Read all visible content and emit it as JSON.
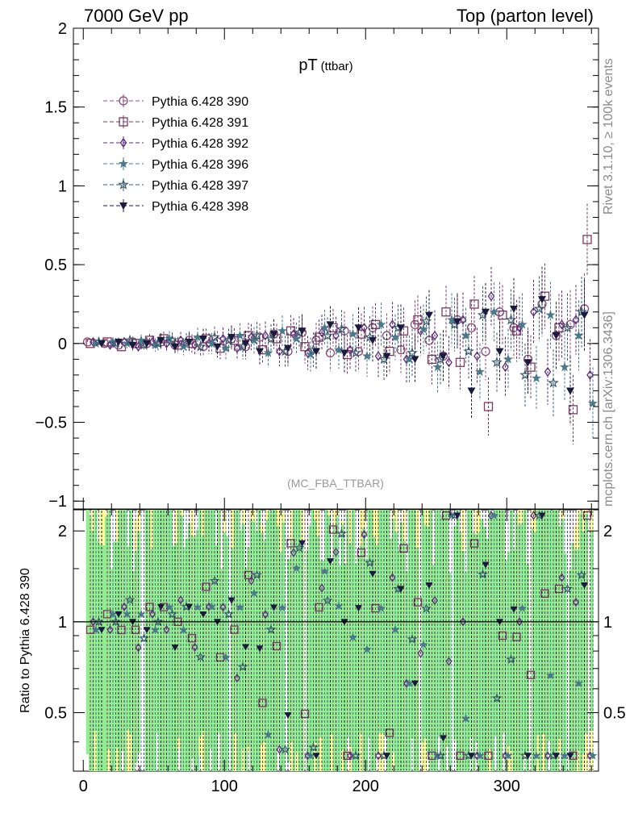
{
  "header": {
    "left": "7000 GeV pp",
    "right": "Top (parton level)"
  },
  "side_labels": {
    "rivet": "Rivet 3.1.10, ≥ 100k events",
    "mcplots": "mcplots.cern.ch [arXiv:1306.3436]"
  },
  "chart_data": [
    {
      "type": "scatter",
      "title": "pT",
      "title_suffix": "(ttbar)",
      "watermark": "(MC_FBA_TTBAR)",
      "xlim": [
        -7,
        365
      ],
      "ylim": [
        -1.05,
        2.0
      ],
      "yticks": [
        -1,
        -0.5,
        0,
        0.5,
        1,
        1.5,
        2
      ],
      "ytick_labels": [
        "−1",
        "−0.5",
        "0",
        "0.5",
        "1",
        "1.5",
        "2"
      ],
      "legend_position": "top-left",
      "series": [
        {
          "name": "Pythia 6.428 390",
          "marker": "circle-open",
          "color": "#8a4a7a",
          "x": [
            3,
            15,
            25,
            35,
            45,
            55,
            65,
            75,
            85,
            95,
            105,
            115,
            125,
            135,
            145,
            155,
            165,
            175,
            185,
            195,
            205,
            215,
            225,
            235,
            245,
            255,
            265,
            275,
            285,
            295,
            305,
            315,
            325,
            335,
            345,
            355
          ],
          "y": [
            0.01,
            0.0,
            -0.01,
            0.01,
            0.0,
            0.01,
            -0.01,
            0.02,
            -0.02,
            0.01,
            0.03,
            -0.02,
            0.04,
            0.06,
            -0.05,
            0.07,
            0.02,
            -0.06,
            0.08,
            -0.05,
            0.1,
            0.05,
            -0.04,
            0.12,
            0.02,
            -0.08,
            0.15,
            0.1,
            -0.05,
            0.2,
            0.1,
            -0.1,
            0.25,
            0.05,
            0.12,
            0.22
          ]
        },
        {
          "name": "Pythia 6.428 391",
          "marker": "square-open",
          "color": "#7a3a5e",
          "x": [
            5,
            17,
            27,
            37,
            47,
            57,
            67,
            77,
            87,
            97,
            107,
            117,
            127,
            137,
            147,
            157,
            167,
            177,
            187,
            197,
            207,
            217,
            227,
            237,
            247,
            257,
            267,
            277,
            287,
            297,
            307,
            317,
            327,
            337,
            347,
            357
          ],
          "y": [
            0.0,
            0.01,
            -0.02,
            0.0,
            0.02,
            0.03,
            -0.01,
            0.0,
            0.03,
            -0.03,
            0.02,
            0.05,
            -0.04,
            0.03,
            0.08,
            -0.02,
            0.04,
            0.1,
            -0.07,
            0.06,
            0.12,
            -0.05,
            0.08,
            0.15,
            -0.1,
            0.2,
            -0.12,
            0.25,
            -0.4,
            0.18,
            0.08,
            -0.15,
            0.3,
            0.1,
            -0.42,
            0.66
          ]
        },
        {
          "name": "Pythia 6.428 392",
          "marker": "diamond-open",
          "color": "#5a2a7a",
          "x": [
            7,
            19,
            29,
            39,
            49,
            59,
            69,
            79,
            89,
            99,
            109,
            119,
            129,
            139,
            149,
            159,
            169,
            179,
            189,
            199,
            209,
            219,
            229,
            239,
            249,
            259,
            269,
            279,
            289,
            299,
            309,
            319,
            329,
            339,
            349,
            359
          ],
          "y": [
            0.01,
            -0.01,
            0.01,
            -0.02,
            0.01,
            0.0,
            0.02,
            -0.01,
            0.0,
            0.03,
            -0.03,
            0.04,
            0.05,
            -0.05,
            0.06,
            -0.06,
            0.07,
            0.05,
            -0.04,
            0.1,
            -0.08,
            0.12,
            -0.1,
            0.08,
            0.05,
            -0.12,
            0.15,
            -0.08,
            0.3,
            -0.15,
            0.1,
            0.2,
            -0.18,
            0.12,
            0.15,
            -0.2
          ]
        },
        {
          "name": "Pythia 6.428 396",
          "marker": "star-filled",
          "color": "#4a7a8a",
          "x": [
            9,
            21,
            31,
            41,
            51,
            61,
            71,
            81,
            91,
            101,
            111,
            121,
            131,
            141,
            151,
            161,
            171,
            181,
            191,
            201,
            211,
            221,
            231,
            241,
            251,
            261,
            271,
            281,
            291,
            301,
            311,
            321,
            331,
            341,
            351,
            361
          ],
          "y": [
            0.0,
            0.01,
            0.0,
            0.02,
            -0.01,
            0.03,
            -0.02,
            0.04,
            0.0,
            -0.03,
            0.05,
            0.02,
            -0.06,
            0.08,
            0.03,
            -0.07,
            0.1,
            -0.04,
            0.06,
            -0.08,
            0.12,
            0.04,
            -0.1,
            0.09,
            -0.15,
            0.15,
            0.05,
            -0.18,
            0.2,
            -0.1,
            0.12,
            -0.22,
            0.18,
            -0.15,
            0.05,
            -0.38
          ]
        },
        {
          "name": "Pythia 6.428 397",
          "marker": "star-open",
          "color": "#3a5a6e",
          "x": [
            11,
            23,
            33,
            43,
            53,
            63,
            73,
            83,
            93,
            103,
            113,
            123,
            133,
            143,
            153,
            163,
            173,
            183,
            193,
            203,
            213,
            223,
            233,
            243,
            253,
            263,
            273,
            283,
            293,
            303,
            313,
            323,
            333,
            343,
            353
          ],
          "y": [
            0.01,
            0.0,
            0.02,
            -0.01,
            0.0,
            0.02,
            0.01,
            -0.02,
            0.04,
            0.02,
            -0.02,
            0.05,
            0.03,
            -0.05,
            0.07,
            -0.04,
            0.05,
            0.09,
            -0.06,
            0.04,
            -0.1,
            0.1,
            -0.06,
            0.14,
            -0.1,
            0.12,
            -0.05,
            0.18,
            -0.12,
            0.15,
            -0.2,
            0.22,
            -0.25,
            0.1,
            0.2
          ]
        },
        {
          "name": "Pythia 6.428 398",
          "marker": "triangle-down-filled",
          "color": "#1a1a3e",
          "x": [
            13,
            25,
            35,
            45,
            55,
            65,
            75,
            85,
            95,
            105,
            115,
            125,
            135,
            145,
            155,
            165,
            175,
            185,
            195,
            205,
            215,
            225,
            235,
            245,
            255,
            265,
            275,
            285,
            295,
            305,
            315,
            325,
            335,
            345,
            355
          ],
          "y": [
            0.0,
            0.01,
            -0.01,
            0.0,
            0.02,
            -0.02,
            0.01,
            0.03,
            -0.02,
            0.04,
            0.0,
            -0.05,
            0.06,
            -0.03,
            0.08,
            -0.05,
            0.12,
            -0.06,
            0.1,
            0.02,
            -0.08,
            0.1,
            -0.1,
            0.18,
            -0.08,
            0.14,
            -0.3,
            0.2,
            -0.05,
            0.22,
            -0.12,
            0.28,
            0.05,
            -0.3,
            0.18
          ]
        }
      ]
    },
    {
      "type": "scatter",
      "ylabel": "Ratio to Pythia 6.428 390",
      "xlim": [
        -7,
        365
      ],
      "ylim": [
        0.32,
        2.35
      ],
      "xticks": [
        0,
        100,
        200,
        300
      ],
      "yticks": [
        0.5,
        1,
        2
      ],
      "ytick_labels": [
        "0.5",
        "1",
        "2"
      ],
      "reference_line": 1,
      "bands": [
        {
          "name": "inner",
          "color": "#90ee90"
        },
        {
          "name": "outer",
          "color": "#ffff9a"
        }
      ]
    }
  ]
}
